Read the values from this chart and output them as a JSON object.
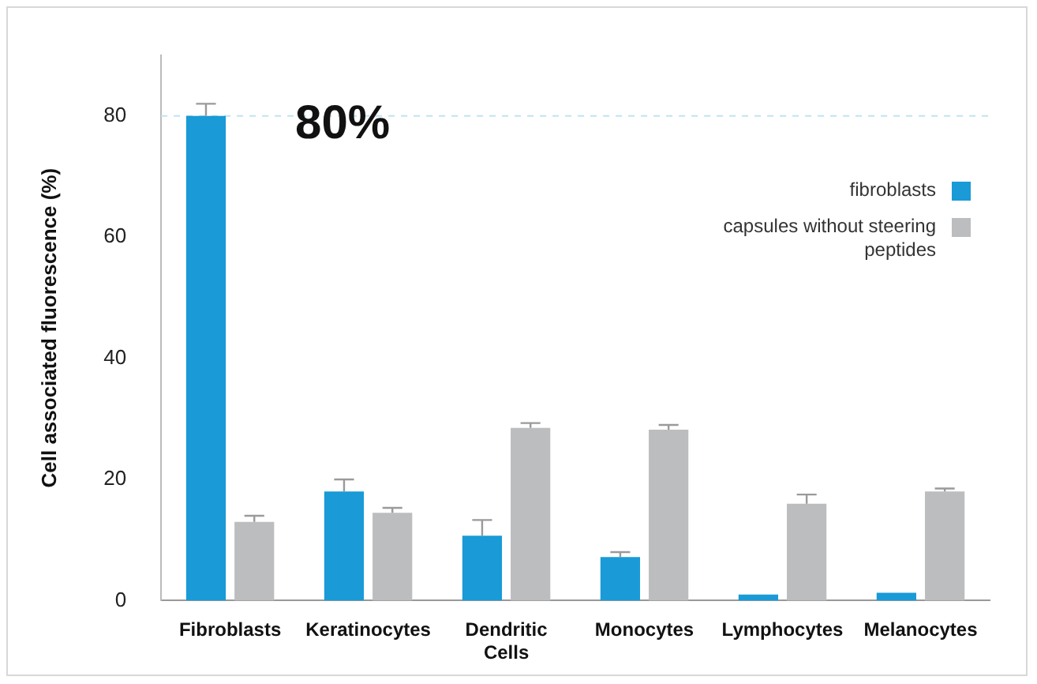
{
  "chart_data": {
    "type": "bar",
    "ylabel": "Cell associated fluorescence (%)",
    "categories": [
      "Fibroblasts",
      "Keratinocytes",
      "Dendritic Cells",
      "Monocytes",
      "Lymphocytes",
      "Melanocytes"
    ],
    "series": [
      {
        "name": "fibroblasts",
        "color": "#1a9ad6",
        "values": [
          80,
          18,
          10.7,
          7.2,
          1,
          1.3
        ],
        "errors": [
          [
            80,
            82
          ],
          [
            18,
            20
          ],
          [
            10.7,
            13.3
          ],
          [
            7.2,
            8
          ],
          null,
          null
        ]
      },
      {
        "name": "capsules without steering peptides",
        "color": "#bcbdbf",
        "values": [
          13,
          14.5,
          28.5,
          28.2,
          16,
          18
        ],
        "errors": [
          [
            13,
            14
          ],
          [
            14.5,
            15.3
          ],
          [
            28.5,
            29.3
          ],
          [
            28.2,
            29
          ],
          [
            16,
            17.5
          ],
          [
            18,
            18.5
          ]
        ]
      }
    ],
    "ylim": [
      0,
      90
    ],
    "yticks": [
      0,
      20,
      40,
      60,
      80
    ],
    "grid": false,
    "legend": "top right",
    "ref_lines": [
      {
        "axis": "y",
        "value": 80,
        "label": "80%",
        "color": "#bfe3f2",
        "line_style": "dashed"
      }
    ]
  }
}
